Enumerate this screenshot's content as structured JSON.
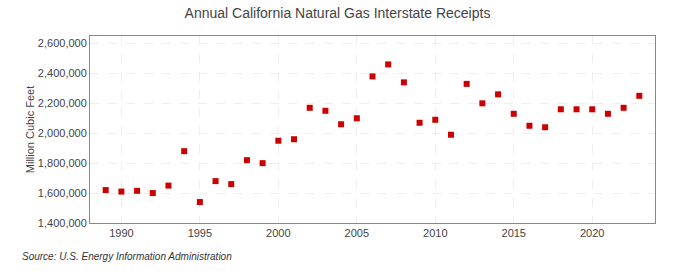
{
  "chart_data": {
    "type": "scatter",
    "title": "Annual California Natural Gas Interstate Receipts",
    "ylabel": "Million Cubic Feet",
    "annotations": [
      "Source: U.S. Energy Information Administration"
    ],
    "x": [
      1989,
      1990,
      1991,
      1992,
      1993,
      1994,
      1995,
      1996,
      1997,
      1998,
      1999,
      2000,
      2001,
      2002,
      2003,
      2004,
      2005,
      2006,
      2007,
      2008,
      2009,
      2010,
      2011,
      2012,
      2013,
      2014,
      2015,
      2016,
      2017,
      2018,
      2019,
      2020,
      2021,
      2022,
      2023
    ],
    "values": [
      1620000,
      1610000,
      1615000,
      1600000,
      1650000,
      1880000,
      1540000,
      1680000,
      1660000,
      1820000,
      1800000,
      1950000,
      1960000,
      2170000,
      2150000,
      2060000,
      2100000,
      2380000,
      2460000,
      2340000,
      2070000,
      2090000,
      1990000,
      2330000,
      2200000,
      2260000,
      2130000,
      2050000,
      2040000,
      2160000,
      2160000,
      2160000,
      2130000,
      2170000,
      2250000
    ],
    "color": "#cc0000",
    "marker": "square",
    "xlim": [
      1988,
      2024
    ],
    "ylim": [
      1400000,
      2650000
    ],
    "xticks": [
      1990,
      1995,
      2000,
      2005,
      2010,
      2015,
      2020
    ],
    "yticks": [
      {
        "value": 1400000,
        "label": "1,400,000"
      },
      {
        "value": 1600000,
        "label": "1,600,000"
      },
      {
        "value": 1800000,
        "label": "1,800,000"
      },
      {
        "value": 2000000,
        "label": "2,000,000"
      },
      {
        "value": 2200000,
        "label": "2,200,000"
      },
      {
        "value": 2400000,
        "label": "2,400,000"
      },
      {
        "value": 2600000,
        "label": "2,600,000"
      }
    ],
    "grid": true
  }
}
